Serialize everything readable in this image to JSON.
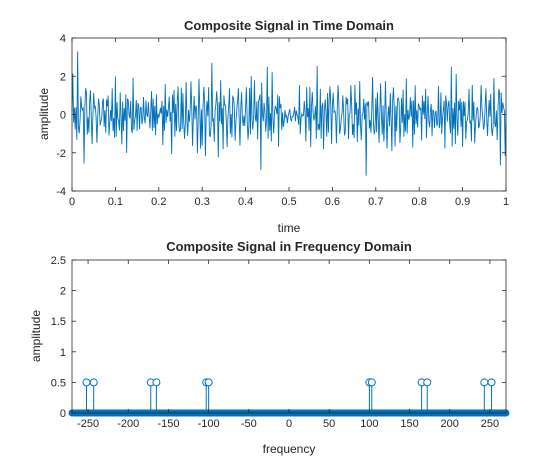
{
  "chart_data": [
    {
      "type": "line",
      "title": "Composite Signal in Time Domain",
      "xlabel": "time",
      "ylabel": "amplitude",
      "xlim": [
        0,
        1
      ],
      "ylim": [
        -4,
        4
      ],
      "xticks": [
        0,
        0.1,
        0.2,
        0.3,
        0.4,
        0.5,
        0.6,
        0.7,
        0.8,
        0.9,
        1
      ],
      "xtick_labels": [
        "0",
        "0.1",
        "0.2",
        "0.3",
        "0.4",
        "0.5",
        "0.6",
        "0.7",
        "0.8",
        "0.9",
        "1"
      ],
      "yticks": [
        -4,
        -2,
        0,
        2,
        4
      ],
      "ytick_labels": [
        "-4",
        "-2",
        "0",
        "2",
        "4"
      ],
      "grid": false,
      "series": [
        {
          "color": "#0072BD",
          "components": [
            {
              "frequency": 100,
              "amplitude": 0.5
            },
            {
              "frequency": 103,
              "amplitude": 0.5
            },
            {
              "frequency": 165,
              "amplitude": 0.5
            },
            {
              "frequency": 172,
              "amplitude": 0.5
            },
            {
              "frequency": 243,
              "amplitude": 0.5
            },
            {
              "frequency": 252,
              "amplitude": 0.5
            }
          ],
          "sample_rate": 540
        }
      ]
    },
    {
      "type": "stem",
      "title": "Composite Signal in Frequency Domain",
      "xlabel": "frequency",
      "ylabel": "amplitude",
      "xlim": [
        -270,
        270
      ],
      "ylim": [
        0,
        2.5
      ],
      "xticks": [
        -250,
        -200,
        -150,
        -100,
        -50,
        0,
        50,
        100,
        150,
        200,
        250
      ],
      "xtick_labels": [
        "-250",
        "-200",
        "-150",
        "-100",
        "-50",
        "0",
        "50",
        "100",
        "150",
        "200",
        "250"
      ],
      "yticks": [
        0,
        0.5,
        1,
        1.5,
        2,
        2.5
      ],
      "ytick_labels": [
        "0",
        "0.5",
        "1",
        "1.5",
        "2",
        "2.5"
      ],
      "grid": false,
      "series": [
        {
          "color": "#0072BD",
          "peaks": [
            {
              "frequency": -252,
              "amplitude": 0.5
            },
            {
              "frequency": -243,
              "amplitude": 0.5
            },
            {
              "frequency": -172,
              "amplitude": 0.5
            },
            {
              "frequency": -165,
              "amplitude": 0.5
            },
            {
              "frequency": -103,
              "amplitude": 0.5
            },
            {
              "frequency": -100,
              "amplitude": 0.5
            },
            {
              "frequency": 100,
              "amplitude": 0.5
            },
            {
              "frequency": 103,
              "amplitude": 0.5
            },
            {
              "frequency": 165,
              "amplitude": 0.5
            },
            {
              "frequency": 172,
              "amplitude": 0.5
            },
            {
              "frequency": 243,
              "amplitude": 0.5
            },
            {
              "frequency": 252,
              "amplitude": 0.5
            }
          ],
          "baseline_range": [
            -270,
            270
          ],
          "baseline_step": 1
        }
      ]
    }
  ]
}
